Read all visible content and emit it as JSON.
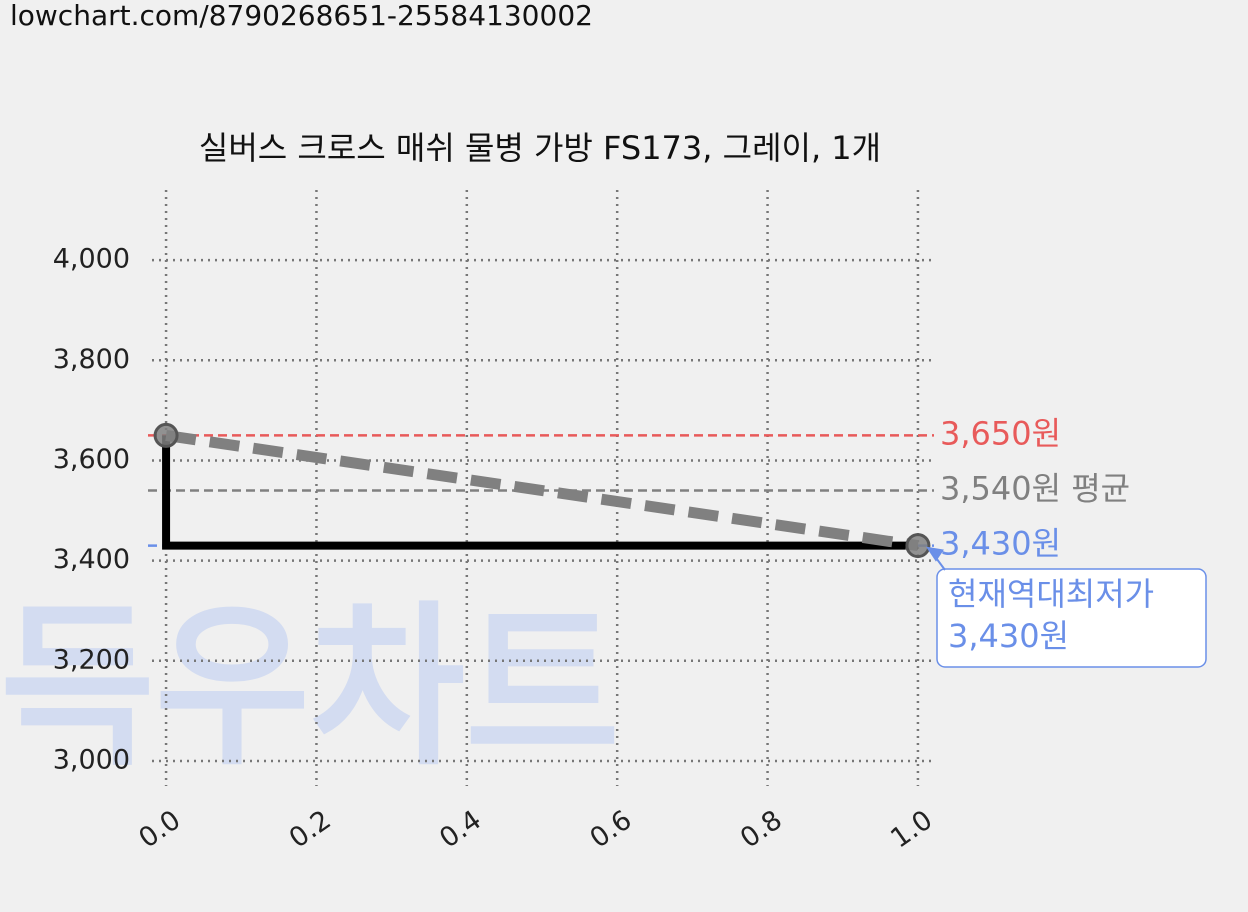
{
  "header": {
    "url": "lowchart.com/8790268651-25584130002"
  },
  "chart_data": {
    "type": "line",
    "title": "실버스 크로스 매쉬 물병 가방 FS173, 그레이, 1개",
    "watermark": "득우차트",
    "x": [
      0,
      0,
      1
    ],
    "series": [
      {
        "color": "#000000",
        "style": "solid",
        "values": [
          3650,
          3430,
          3430
        ]
      },
      {
        "color": "#808080",
        "style": "dashed",
        "markers": true,
        "x": [
          0,
          1
        ],
        "values": [
          3650,
          3430
        ]
      }
    ],
    "reference_lines": [
      {
        "value": 3650,
        "color": "#e85a5a",
        "label": "3,650원"
      },
      {
        "value": 3540,
        "color": "#808080",
        "label": "3,540원 평균"
      },
      {
        "value": 3430,
        "color": "#6a8fe8",
        "label": "3,430원"
      }
    ],
    "annotation": {
      "lines": [
        "현재역대최저가",
        "3,430원"
      ],
      "x": 1,
      "y": 3430,
      "color": "#6a8fe8"
    },
    "xlim": [
      -0.04,
      1.04
    ],
    "ylim": [
      2950,
      4140
    ],
    "xticks": [
      {
        "value": 0,
        "label": "0.0"
      },
      {
        "value": 0.2,
        "label": "0.2"
      },
      {
        "value": 0.4,
        "label": "0.4"
      },
      {
        "value": 0.6,
        "label": "0.6"
      },
      {
        "value": 0.8,
        "label": "0.8"
      },
      {
        "value": 1,
        "label": "1.0"
      }
    ],
    "yticks": [
      {
        "value": 3000,
        "label": "3,000"
      },
      {
        "value": 3200,
        "label": "3,200"
      },
      {
        "value": 3400,
        "label": "3,400"
      },
      {
        "value": 3600,
        "label": "3,600"
      },
      {
        "value": 3800,
        "label": "3,800"
      },
      {
        "value": 4000,
        "label": "4,000"
      }
    ],
    "grid": true
  }
}
